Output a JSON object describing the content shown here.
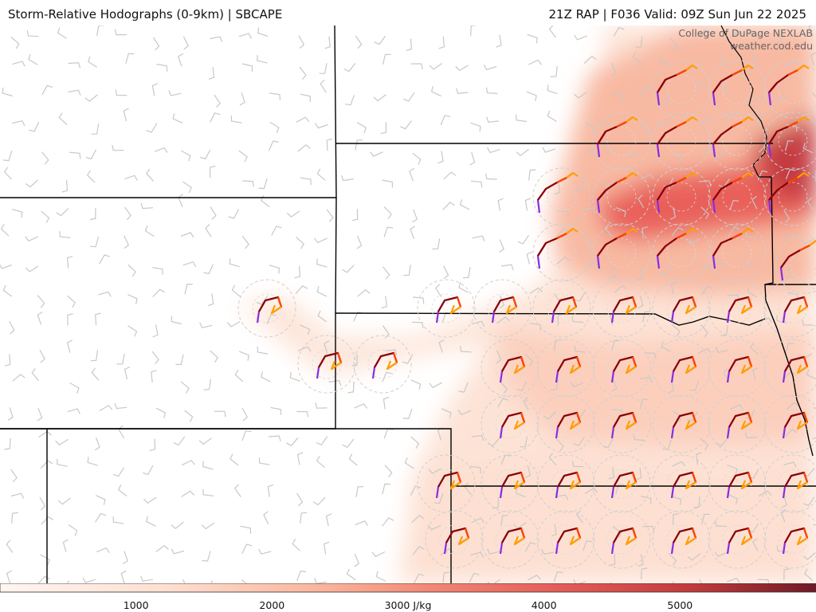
{
  "header": {
    "title_left": "Storm-Relative Hodographs (0-9km) | SBCAPE",
    "title_right": "21Z RAP | F036 Valid: 09Z Sun Jun 22 2025"
  },
  "credits": {
    "line1": "College of DuPage NEXLAB",
    "line2": "weather.cod.edu"
  },
  "colorbar": {
    "unit": "J/kg",
    "min": 0,
    "max": 6000,
    "labels": [
      {
        "text": "1000",
        "value": 1000
      },
      {
        "text": "2000",
        "value": 2000
      },
      {
        "text": "3000 J/kg",
        "value": 3000
      },
      {
        "text": "4000",
        "value": 4000
      },
      {
        "text": "5000",
        "value": 5000
      }
    ]
  },
  "colors": {
    "cape_low": "#fdebe2",
    "cape_mid": "#f08070",
    "cape_high": "#7a1f2a",
    "hodo_0_1km": "#8a2be2",
    "hodo_1_3km": "#8b0000",
    "hodo_3_6km": "#ff4500",
    "hodo_6_9km": "#ff9f00",
    "barbs": "#c8c8c8",
    "boundaries": "#000000"
  }
}
